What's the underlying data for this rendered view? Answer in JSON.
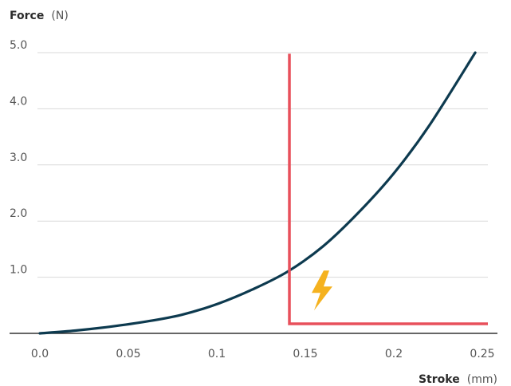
{
  "chart_data": {
    "type": "line",
    "ylabel_name": "Force",
    "ylabel_unit": "(N)",
    "xlabel_name": "Stroke",
    "xlabel_unit": "(mm)",
    "xlim": [
      0,
      0.25
    ],
    "ylim": [
      0,
      5.0
    ],
    "x_ticks": [
      {
        "value": 0.0,
        "label": "0.0"
      },
      {
        "value": 0.05,
        "label": "0.05"
      },
      {
        "value": 0.1,
        "label": "0.1"
      },
      {
        "value": 0.15,
        "label": "0.15"
      },
      {
        "value": 0.2,
        "label": "0.2"
      },
      {
        "value": 0.25,
        "label": "0.25"
      }
    ],
    "y_ticks": [
      {
        "value": 1.0,
        "label": "1.0"
      },
      {
        "value": 2.0,
        "label": "2.0"
      },
      {
        "value": 3.0,
        "label": "3.0"
      },
      {
        "value": 4.0,
        "label": "4.0"
      },
      {
        "value": 5.0,
        "label": "5.0"
      }
    ],
    "grid": true,
    "series": [
      {
        "color": "#0d3a4f",
        "points": [
          [
            0.0,
            0.0
          ],
          [
            0.02,
            0.05
          ],
          [
            0.04,
            0.12
          ],
          [
            0.06,
            0.21
          ],
          [
            0.08,
            0.33
          ],
          [
            0.1,
            0.52
          ],
          [
            0.12,
            0.78
          ],
          [
            0.14,
            1.1
          ],
          [
            0.16,
            1.55
          ],
          [
            0.18,
            2.15
          ],
          [
            0.2,
            2.85
          ],
          [
            0.22,
            3.7
          ],
          [
            0.246,
            5.0
          ]
        ]
      }
    ],
    "threshold": {
      "color": "#e8505b",
      "x": 0.141,
      "y_top": 4.98,
      "y_bottom": 0.17,
      "x_end": 0.25
    },
    "annotation_icon": {
      "name": "lightning-bolt-icon",
      "color": "#f5b21f",
      "x": 0.159,
      "y": 0.75
    }
  }
}
